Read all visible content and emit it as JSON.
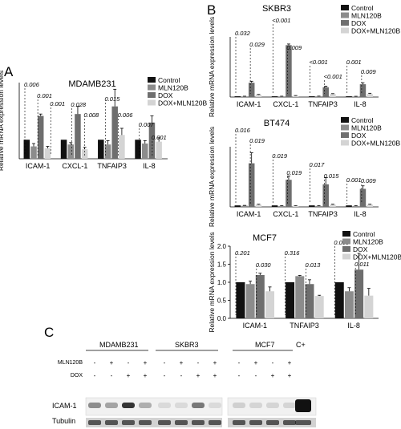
{
  "colors": {
    "control": "#111111",
    "mln": "#8c8c8c",
    "dox": "#6e6e6e",
    "doxmln": "#d4d4d4"
  },
  "panel_labels": {
    "a": "A",
    "b": "B",
    "c": "C"
  },
  "blot": {
    "groups": [
      "MDAMB231",
      "SKBR3",
      "MCF7",
      "C+"
    ],
    "row_labels": [
      "MLN120B",
      "DOX"
    ],
    "signs_mln": [
      "-",
      "+",
      "-",
      "+"
    ],
    "signs_dox": [
      "-",
      "-",
      "+",
      "+"
    ],
    "bands": [
      "ICAM-1",
      "Tubulin"
    ]
  },
  "chart_data": [
    {
      "id": "mdamb231",
      "type": "bar",
      "title": "MDAMB231",
      "ylabel": "Relative mRNA expression levels",
      "ylim": [
        0,
        4
      ],
      "categories": [
        "ICAM-1",
        "CXCL-1",
        "TNFAIP3",
        "IL-8"
      ],
      "series": [
        {
          "name": "Control",
          "values": [
            1.0,
            1.0,
            1.0,
            1.0
          ],
          "errors": [
            0,
            0,
            0,
            0
          ]
        },
        {
          "name": "MLN120B",
          "values": [
            0.65,
            0.75,
            0.75,
            0.8
          ],
          "errors": [
            0.15,
            0.1,
            0.2,
            0.15
          ]
        },
        {
          "name": "DOX",
          "values": [
            2.25,
            2.35,
            2.75,
            1.9
          ],
          "errors": [
            0.1,
            0.4,
            0.9,
            0.35
          ]
        },
        {
          "name": "DOX+MLN120B",
          "values": [
            0.55,
            0.5,
            1.25,
            0.9
          ],
          "errors": [
            0.1,
            0.1,
            0.35,
            0.2
          ]
        }
      ],
      "annotations": [
        "0.006",
        "0.001",
        "0.001",
        "0.028",
        "0.008",
        "0.015",
        "0.006",
        "0.007",
        "0.001"
      ]
    },
    {
      "id": "skbr3",
      "type": "bar",
      "title": "SKBR3",
      "ylabel": "Relative mRNA expression levels",
      "ylim": [
        0,
        80
      ],
      "categories": [
        "ICAM-1",
        "CXCL-1",
        "TNFAIP3",
        "IL-8"
      ],
      "series": [
        {
          "name": "Control",
          "values": [
            1,
            1,
            1,
            1
          ],
          "errors": [
            0,
            0,
            0,
            0
          ]
        },
        {
          "name": "MLN120B",
          "values": [
            0.8,
            0.8,
            0.9,
            0.7
          ],
          "errors": [
            0.3,
            0.3,
            0.3,
            0.3
          ]
        },
        {
          "name": "DOX",
          "values": [
            19,
            69,
            13,
            17
          ],
          "errors": [
            2,
            1.5,
            1.5,
            2
          ]
        },
        {
          "name": "DOX+MLN120B",
          "values": [
            3,
            1.5,
            4,
            4
          ],
          "errors": [
            0.5,
            0.5,
            0.5,
            1
          ]
        }
      ],
      "annotations": [
        "0.032",
        "0.029",
        "<0.001",
        "0.009",
        "<0.001",
        "<0.001",
        "0.001",
        "0.009"
      ]
    },
    {
      "id": "bt474",
      "type": "bar",
      "title": "BT474",
      "ylabel": "Relative mRNA expression levels",
      "ylim": [
        0,
        40
      ],
      "categories": [
        "ICAM-1",
        "CXCL-1",
        "TNFAIP3",
        "IL-8"
      ],
      "series": [
        {
          "name": "Control",
          "values": [
            1,
            1,
            1,
            1
          ],
          "errors": [
            0,
            0,
            0,
            0
          ]
        },
        {
          "name": "MLN120B",
          "values": [
            0.8,
            0.6,
            0.6,
            0.6
          ],
          "errors": [
            0.2,
            0.2,
            0.2,
            0.2
          ]
        },
        {
          "name": "DOX",
          "values": [
            29,
            18,
            15,
            12
          ],
          "errors": [
            7,
            2.5,
            4.5,
            2
          ]
        },
        {
          "name": "DOX+MLN120B",
          "values": [
            1.5,
            0.7,
            1.5,
            1.5
          ],
          "errors": [
            0.3,
            0.2,
            0.3,
            0.3
          ]
        }
      ],
      "annotations": [
        "0.016",
        "0.019",
        "0.019",
        "0.019",
        "0.017",
        "0.015",
        "0.001",
        "0.009"
      ]
    },
    {
      "id": "mcf7",
      "type": "bar",
      "title": "MCF7",
      "ylabel": "Relative mRNA expression levels",
      "ylim": [
        0,
        2.0
      ],
      "yticks": [
        "0.0",
        "0.5",
        "1.0",
        "1.5",
        "2.0"
      ],
      "categories": [
        "ICAM-1",
        "TNFAIP3",
        "IL-8"
      ],
      "series": [
        {
          "name": "Control",
          "values": [
            1.0,
            1.0,
            1.0
          ],
          "errors": [
            0,
            0,
            0
          ]
        },
        {
          "name": "MLN120B",
          "values": [
            0.95,
            1.17,
            0.75
          ],
          "errors": [
            0.08,
            0.02,
            0.1
          ]
        },
        {
          "name": "DOX",
          "values": [
            1.2,
            0.95,
            1.35
          ],
          "errors": [
            0.05,
            0.12,
            0.45
          ]
        },
        {
          "name": "DOX+MLN120B",
          "values": [
            0.75,
            0.62,
            0.63
          ],
          "errors": [
            0.12,
            0.02,
            0.2
          ]
        }
      ],
      "annotations": [
        "0.201",
        "0.030",
        "0.316",
        "0.013",
        "0.003",
        "0.011"
      ]
    }
  ]
}
